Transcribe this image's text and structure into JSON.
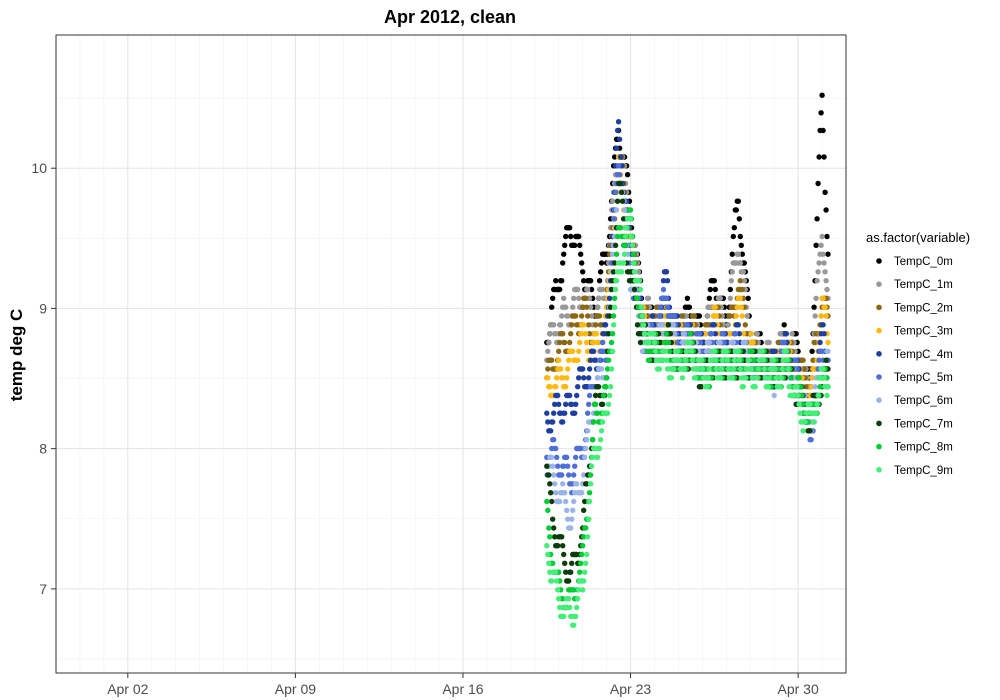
{
  "chart_data": {
    "type": "scatter",
    "title": "Apr 2012, clean",
    "xlabel": "",
    "ylabel": "temp deg C",
    "xlim": [
      "2012-03-30",
      "2012-05-02"
    ],
    "ylim": [
      6.4,
      10.95
    ],
    "x_ticks": [
      "Apr 02",
      "Apr 09",
      "Apr 16",
      "Apr 23",
      "Apr 30"
    ],
    "x_tick_dates": [
      "2012-04-02",
      "2012-04-09",
      "2012-04-16",
      "2012-04-23",
      "2012-04-30"
    ],
    "y_ticks": [
      7,
      8,
      9,
      10
    ],
    "grid": true,
    "legend": {
      "title": "as.factor(variable)",
      "position": "right"
    },
    "series": [
      {
        "name": "TempC_0m",
        "color": "#000000",
        "points": [
          [
            "2012-04-19T12:00",
            8.8
          ],
          [
            "2012-04-20T00:00",
            9.2
          ],
          [
            "2012-04-20T12:00",
            9.6
          ],
          [
            "2012-04-21T00:00",
            9.3
          ],
          [
            "2012-04-21T12:00",
            9.0
          ],
          [
            "2012-04-22T00:00",
            9.4
          ],
          [
            "2012-04-22T12:00",
            10.3
          ],
          [
            "2012-04-23T00:00",
            9.7
          ],
          [
            "2012-04-23T12:00",
            9.0
          ],
          [
            "2012-04-24T00:00",
            8.9
          ],
          [
            "2012-04-24T12:00",
            9.0
          ],
          [
            "2012-04-25T00:00",
            8.8
          ],
          [
            "2012-04-25T12:00",
            9.0
          ],
          [
            "2012-04-26T00:00",
            8.8
          ],
          [
            "2012-04-26T12:00",
            9.2
          ],
          [
            "2012-04-27T00:00",
            8.9
          ],
          [
            "2012-04-27T12:00",
            9.8
          ],
          [
            "2012-04-28T00:00",
            8.8
          ],
          [
            "2012-04-28T12:00",
            8.7
          ],
          [
            "2012-04-29T00:00",
            8.6
          ],
          [
            "2012-04-29T12:00",
            8.8
          ],
          [
            "2012-04-30T00:00",
            8.7
          ],
          [
            "2012-04-30T12:00",
            8.4
          ],
          [
            "2012-05-01T00:00",
            10.5
          ],
          [
            "2012-05-01T06:00",
            9.4
          ]
        ]
      },
      {
        "name": "TempC_1m",
        "color": "#999999",
        "points": [
          [
            "2012-04-19T12:00",
            8.7
          ],
          [
            "2012-04-20T00:00",
            8.9
          ],
          [
            "2012-04-20T12:00",
            9.0
          ],
          [
            "2012-04-21T00:00",
            9.1
          ],
          [
            "2012-04-21T12:00",
            8.9
          ],
          [
            "2012-04-22T00:00",
            9.2
          ],
          [
            "2012-04-22T12:00",
            10.2
          ],
          [
            "2012-04-23T00:00",
            9.6
          ],
          [
            "2012-04-23T12:00",
            9.0
          ],
          [
            "2012-04-24T00:00",
            8.9
          ],
          [
            "2012-04-24T12:00",
            8.9
          ],
          [
            "2012-04-25T00:00",
            8.8
          ],
          [
            "2012-04-25T12:00",
            8.9
          ],
          [
            "2012-04-26T00:00",
            8.7
          ],
          [
            "2012-04-26T12:00",
            9.1
          ],
          [
            "2012-04-27T00:00",
            8.8
          ],
          [
            "2012-04-27T12:00",
            9.5
          ],
          [
            "2012-04-28T00:00",
            8.7
          ],
          [
            "2012-04-28T12:00",
            8.7
          ],
          [
            "2012-04-29T00:00",
            8.6
          ],
          [
            "2012-04-29T12:00",
            8.8
          ],
          [
            "2012-04-30T00:00",
            8.6
          ],
          [
            "2012-04-30T12:00",
            8.4
          ],
          [
            "2012-05-01T00:00",
            9.6
          ],
          [
            "2012-05-01T06:00",
            9.0
          ]
        ]
      },
      {
        "name": "TempC_2m",
        "color": "#8B6914",
        "points": [
          [
            "2012-04-19T12:00",
            8.5
          ],
          [
            "2012-04-20T00:00",
            8.7
          ],
          [
            "2012-04-20T12:00",
            8.8
          ],
          [
            "2012-04-21T00:00",
            9.0
          ],
          [
            "2012-04-21T12:00",
            8.8
          ],
          [
            "2012-04-22T00:00",
            9.0
          ],
          [
            "2012-04-22T12:00",
            10.1
          ],
          [
            "2012-04-23T00:00",
            9.5
          ],
          [
            "2012-04-23T12:00",
            8.9
          ],
          [
            "2012-04-24T00:00",
            8.9
          ],
          [
            "2012-04-24T12:00",
            8.9
          ],
          [
            "2012-04-25T00:00",
            8.8
          ],
          [
            "2012-04-25T12:00",
            8.9
          ],
          [
            "2012-04-26T00:00",
            8.7
          ],
          [
            "2012-04-26T12:00",
            9.0
          ],
          [
            "2012-04-27T00:00",
            8.7
          ],
          [
            "2012-04-27T12:00",
            9.2
          ],
          [
            "2012-04-28T00:00",
            8.7
          ],
          [
            "2012-04-28T12:00",
            8.6
          ],
          [
            "2012-04-29T00:00",
            8.6
          ],
          [
            "2012-04-29T12:00",
            8.7
          ],
          [
            "2012-04-30T00:00",
            8.6
          ],
          [
            "2012-04-30T12:00",
            8.4
          ],
          [
            "2012-05-01T00:00",
            9.1
          ],
          [
            "2012-05-01T06:00",
            8.9
          ]
        ]
      },
      {
        "name": "TempC_3m",
        "color": "#FFB90F",
        "points": [
          [
            "2012-04-19T12:00",
            8.4
          ],
          [
            "2012-04-20T00:00",
            8.5
          ],
          [
            "2012-04-20T12:00",
            8.6
          ],
          [
            "2012-04-21T00:00",
            8.8
          ],
          [
            "2012-04-21T12:00",
            8.7
          ],
          [
            "2012-04-22T00:00",
            8.9
          ],
          [
            "2012-04-22T12:00",
            10.0
          ],
          [
            "2012-04-23T00:00",
            9.4
          ],
          [
            "2012-04-23T12:00",
            8.9
          ],
          [
            "2012-04-24T00:00",
            8.8
          ],
          [
            "2012-04-24T12:00",
            8.9
          ],
          [
            "2012-04-25T00:00",
            8.8
          ],
          [
            "2012-04-25T12:00",
            8.8
          ],
          [
            "2012-04-26T00:00",
            8.7
          ],
          [
            "2012-04-26T12:00",
            8.9
          ],
          [
            "2012-04-27T00:00",
            8.7
          ],
          [
            "2012-04-27T12:00",
            9.0
          ],
          [
            "2012-04-28T00:00",
            8.7
          ],
          [
            "2012-04-28T12:00",
            8.6
          ],
          [
            "2012-04-29T00:00",
            8.6
          ],
          [
            "2012-04-29T12:00",
            8.7
          ],
          [
            "2012-04-30T00:00",
            8.5
          ],
          [
            "2012-04-30T12:00",
            8.3
          ],
          [
            "2012-05-01T00:00",
            9.0
          ],
          [
            "2012-05-01T06:00",
            8.8
          ]
        ]
      },
      {
        "name": "TempC_4m",
        "color": "#1E3FA0",
        "points": [
          [
            "2012-04-19T12:00",
            8.2
          ],
          [
            "2012-04-20T00:00",
            8.3
          ],
          [
            "2012-04-20T12:00",
            8.3
          ],
          [
            "2012-04-21T00:00",
            8.5
          ],
          [
            "2012-04-21T12:00",
            8.6
          ],
          [
            "2012-04-22T00:00",
            8.8
          ],
          [
            "2012-04-22T12:00",
            10.3
          ],
          [
            "2012-04-23T00:00",
            9.4
          ],
          [
            "2012-04-23T12:00",
            8.9
          ],
          [
            "2012-04-24T00:00",
            8.8
          ],
          [
            "2012-04-24T12:00",
            9.2
          ],
          [
            "2012-04-25T00:00",
            8.8
          ],
          [
            "2012-04-25T12:00",
            8.8
          ],
          [
            "2012-04-26T00:00",
            8.7
          ],
          [
            "2012-04-26T12:00",
            8.8
          ],
          [
            "2012-04-27T00:00",
            8.7
          ],
          [
            "2012-04-27T12:00",
            8.8
          ],
          [
            "2012-04-28T00:00",
            8.6
          ],
          [
            "2012-04-28T12:00",
            8.6
          ],
          [
            "2012-04-29T00:00",
            8.6
          ],
          [
            "2012-04-29T12:00",
            8.7
          ],
          [
            "2012-04-30T00:00",
            8.5
          ],
          [
            "2012-04-30T12:00",
            8.2
          ],
          [
            "2012-05-01T00:00",
            8.8
          ],
          [
            "2012-05-01T06:00",
            8.7
          ]
        ]
      },
      {
        "name": "TempC_5m",
        "color": "#4F6FD8",
        "points": [
          [
            "2012-04-19T12:00",
            8.0
          ],
          [
            "2012-04-20T00:00",
            7.9
          ],
          [
            "2012-04-20T12:00",
            7.8
          ],
          [
            "2012-04-21T00:00",
            8.0
          ],
          [
            "2012-04-21T12:00",
            8.5
          ],
          [
            "2012-04-22T00:00",
            8.7
          ],
          [
            "2012-04-22T12:00",
            10.1
          ],
          [
            "2012-04-23T00:00",
            9.3
          ],
          [
            "2012-04-23T12:00",
            8.8
          ],
          [
            "2012-04-24T00:00",
            8.8
          ],
          [
            "2012-04-24T12:00",
            9.1
          ],
          [
            "2012-04-25T00:00",
            8.7
          ],
          [
            "2012-04-25T12:00",
            8.8
          ],
          [
            "2012-04-26T00:00",
            8.7
          ],
          [
            "2012-04-26T12:00",
            8.7
          ],
          [
            "2012-04-27T00:00",
            8.7
          ],
          [
            "2012-04-27T12:00",
            8.7
          ],
          [
            "2012-04-28T00:00",
            8.6
          ],
          [
            "2012-04-28T12:00",
            8.6
          ],
          [
            "2012-04-29T00:00",
            8.5
          ],
          [
            "2012-04-29T12:00",
            8.7
          ],
          [
            "2012-04-30T00:00",
            8.5
          ],
          [
            "2012-04-30T12:00",
            8.1
          ],
          [
            "2012-05-01T00:00",
            8.7
          ],
          [
            "2012-05-01T06:00",
            8.6
          ]
        ]
      },
      {
        "name": "TempC_6m",
        "color": "#9BB4E8",
        "points": [
          [
            "2012-04-19T12:00",
            7.9
          ],
          [
            "2012-04-20T00:00",
            7.7
          ],
          [
            "2012-04-20T12:00",
            7.5
          ],
          [
            "2012-04-21T00:00",
            7.8
          ],
          [
            "2012-04-21T12:00",
            8.4
          ],
          [
            "2012-04-22T00:00",
            8.6
          ],
          [
            "2012-04-22T12:00",
            10.0
          ],
          [
            "2012-04-23T00:00",
            9.2
          ],
          [
            "2012-04-23T12:00",
            8.8
          ],
          [
            "2012-04-24T00:00",
            8.7
          ],
          [
            "2012-04-24T12:00",
            8.9
          ],
          [
            "2012-04-25T00:00",
            8.7
          ],
          [
            "2012-04-25T12:00",
            8.7
          ],
          [
            "2012-04-26T00:00",
            8.6
          ],
          [
            "2012-04-26T12:00",
            8.7
          ],
          [
            "2012-04-27T00:00",
            8.6
          ],
          [
            "2012-04-27T12:00",
            8.7
          ],
          [
            "2012-04-28T00:00",
            8.6
          ],
          [
            "2012-04-28T12:00",
            8.6
          ],
          [
            "2012-04-29T00:00",
            8.5
          ],
          [
            "2012-04-29T12:00",
            8.6
          ],
          [
            "2012-04-30T00:00",
            8.4
          ],
          [
            "2012-04-30T12:00",
            8.2
          ],
          [
            "2012-05-01T00:00",
            8.6
          ],
          [
            "2012-05-01T06:00",
            8.6
          ]
        ]
      },
      {
        "name": "TempC_7m",
        "color": "#0B3D0B",
        "points": [
          [
            "2012-04-19T12:00",
            7.8
          ],
          [
            "2012-04-20T00:00",
            7.3
          ],
          [
            "2012-04-20T12:00",
            7.1
          ],
          [
            "2012-04-21T00:00",
            7.4
          ],
          [
            "2012-04-21T12:00",
            8.3
          ],
          [
            "2012-04-22T00:00",
            8.5
          ],
          [
            "2012-04-22T12:00",
            9.9
          ],
          [
            "2012-04-23T00:00",
            9.2
          ],
          [
            "2012-04-23T12:00",
            8.8
          ],
          [
            "2012-04-24T00:00",
            8.7
          ],
          [
            "2012-04-24T12:00",
            8.8
          ],
          [
            "2012-04-25T00:00",
            8.6
          ],
          [
            "2012-04-25T12:00",
            8.7
          ],
          [
            "2012-04-26T00:00",
            8.5
          ],
          [
            "2012-04-26T12:00",
            8.6
          ],
          [
            "2012-04-27T00:00",
            8.6
          ],
          [
            "2012-04-27T12:00",
            8.6
          ],
          [
            "2012-04-28T00:00",
            8.6
          ],
          [
            "2012-04-28T12:00",
            8.6
          ],
          [
            "2012-04-29T00:00",
            8.5
          ],
          [
            "2012-04-29T12:00",
            8.6
          ],
          [
            "2012-04-30T00:00",
            8.4
          ],
          [
            "2012-04-30T12:00",
            8.2
          ],
          [
            "2012-05-01T00:00",
            8.5
          ],
          [
            "2012-05-01T06:00",
            8.5
          ]
        ]
      },
      {
        "name": "TempC_8m",
        "color": "#00CC33",
        "points": [
          [
            "2012-04-19T12:00",
            7.5
          ],
          [
            "2012-04-20T00:00",
            7.0
          ],
          [
            "2012-04-20T12:00",
            6.9
          ],
          [
            "2012-04-21T00:00",
            7.2
          ],
          [
            "2012-04-21T12:00",
            8.2
          ],
          [
            "2012-04-22T00:00",
            8.4
          ],
          [
            "2012-04-22T12:00",
            9.5
          ],
          [
            "2012-04-23T00:00",
            9.6
          ],
          [
            "2012-04-23T12:00",
            8.8
          ],
          [
            "2012-04-24T00:00",
            8.7
          ],
          [
            "2012-04-24T12:00",
            8.7
          ],
          [
            "2012-04-25T00:00",
            8.6
          ],
          [
            "2012-04-25T12:00",
            8.7
          ],
          [
            "2012-04-26T00:00",
            8.5
          ],
          [
            "2012-04-26T12:00",
            8.6
          ],
          [
            "2012-04-27T00:00",
            8.6
          ],
          [
            "2012-04-27T12:00",
            8.6
          ],
          [
            "2012-04-28T00:00",
            8.6
          ],
          [
            "2012-04-28T12:00",
            8.6
          ],
          [
            "2012-04-29T00:00",
            8.5
          ],
          [
            "2012-04-29T12:00",
            8.6
          ],
          [
            "2012-04-30T00:00",
            8.4
          ],
          [
            "2012-04-30T12:00",
            8.2
          ],
          [
            "2012-05-01T00:00",
            8.5
          ],
          [
            "2012-05-01T06:00",
            8.5
          ]
        ]
      },
      {
        "name": "TempC_9m",
        "color": "#44EE77",
        "points": [
          [
            "2012-04-19T12:00",
            7.3
          ],
          [
            "2012-04-20T00:00",
            6.9
          ],
          [
            "2012-04-20T12:00",
            6.8
          ],
          [
            "2012-04-21T00:00",
            7.0
          ],
          [
            "2012-04-21T12:00",
            8.0
          ],
          [
            "2012-04-22T00:00",
            8.2
          ],
          [
            "2012-04-22T12:00",
            9.3
          ],
          [
            "2012-04-23T00:00",
            9.6
          ],
          [
            "2012-04-23T12:00",
            8.9
          ],
          [
            "2012-04-24T00:00",
            8.7
          ],
          [
            "2012-04-24T12:00",
            8.6
          ],
          [
            "2012-04-25T00:00",
            8.6
          ],
          [
            "2012-04-25T12:00",
            8.7
          ],
          [
            "2012-04-26T00:00",
            8.5
          ],
          [
            "2012-04-26T12:00",
            8.6
          ],
          [
            "2012-04-27T00:00",
            8.6
          ],
          [
            "2012-04-27T12:00",
            8.6
          ],
          [
            "2012-04-28T00:00",
            8.5
          ],
          [
            "2012-04-28T12:00",
            8.6
          ],
          [
            "2012-04-29T00:00",
            8.5
          ],
          [
            "2012-04-29T12:00",
            8.6
          ],
          [
            "2012-04-30T00:00",
            8.3
          ],
          [
            "2012-04-30T12:00",
            8.2
          ],
          [
            "2012-05-01T00:00",
            8.5
          ],
          [
            "2012-05-01T06:00",
            8.5
          ]
        ]
      }
    ]
  }
}
